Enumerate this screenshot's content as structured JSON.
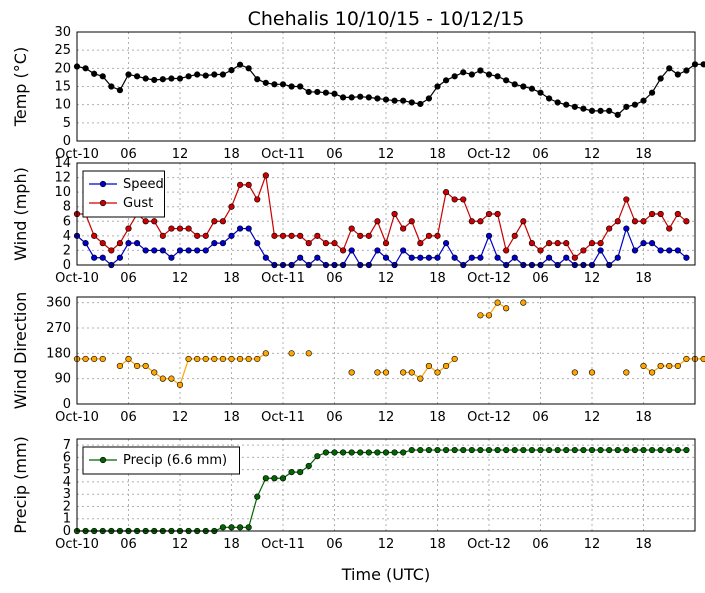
{
  "chart_data": {
    "type": "line",
    "title": "Chehalis 10/10/15 - 10/12/15",
    "xlabel": "Time (UTC)",
    "x_tick_labels": [
      "Oct-10",
      "06",
      "12",
      "18",
      "Oct-11",
      "06",
      "12",
      "18",
      "Oct-12",
      "06",
      "12",
      "18"
    ],
    "x_tick_hours": [
      0,
      6,
      12,
      18,
      24,
      30,
      36,
      42,
      48,
      54,
      60,
      66
    ],
    "x_range_hours": [
      0,
      72
    ],
    "grid": true,
    "panels": [
      {
        "ylabel": "Temp (°C)",
        "ylim": [
          0,
          30
        ],
        "yticks": [
          0,
          5,
          10,
          15,
          20,
          25,
          30
        ],
        "series": [
          {
            "color": "#000000",
            "values": [
              20.5,
              20,
              18.5,
              17.8,
              15,
              14,
              18.3,
              17.8,
              17.2,
              16.8,
              17,
              17.2,
              17.2,
              17.8,
              18.3,
              18,
              18.3,
              18.3,
              19.5,
              21,
              20,
              17,
              16,
              15.6,
              15.6,
              15,
              15,
              13.5,
              13.5,
              13.3,
              13,
              12,
              12,
              12.2,
              12,
              11.7,
              11.4,
              11.1,
              11.1,
              10.6,
              10.2,
              11.7,
              15,
              16.7,
              17.8,
              18.9,
              18.3,
              19.4,
              18.3,
              17.8,
              16.7,
              15.6,
              15,
              14.4,
              13.3,
              11.7,
              10.6,
              10,
              9.4,
              8.9,
              8.3,
              8.3,
              8.3,
              7.2,
              9.4,
              10,
              11.1,
              13.3,
              17.2,
              20,
              18.3,
              19.4,
              21.1,
              21.1
            ]
          }
        ]
      },
      {
        "ylabel": "Wind (mph)",
        "ylim": [
          0,
          14
        ],
        "yticks": [
          0,
          2,
          4,
          6,
          8,
          10,
          12,
          14
        ],
        "legend": {
          "placement": "upper-left"
        },
        "series": [
          {
            "name": "Speed",
            "color": "#0000cc",
            "values": [
              4,
              3,
              1,
              1,
              0,
              1,
              3,
              3,
              2,
              2,
              2,
              1,
              2,
              2,
              2,
              2,
              3,
              3,
              4,
              5,
              5,
              3,
              1,
              0,
              0,
              0,
              1,
              0,
              1,
              0,
              0,
              0,
              2,
              0,
              0,
              2,
              1,
              0,
              2,
              1,
              1,
              1,
              1,
              3,
              1,
              0,
              1,
              1,
              4,
              1,
              0,
              1,
              0,
              0,
              0,
              1,
              0,
              1,
              0,
              0,
              0,
              2,
              0,
              1,
              5,
              2,
              3,
              3,
              2,
              2,
              2,
              1
            ]
          },
          {
            "name": "Gust",
            "color": "#cc0000",
            "values": [
              7,
              7,
              4,
              3,
              2,
              3,
              5,
              7,
              6,
              6,
              4,
              5,
              5,
              5,
              4,
              4,
              6,
              6,
              8,
              11,
              11,
              9,
              12.3,
              4,
              4,
              4,
              4,
              3,
              4,
              3,
              3,
              2,
              5,
              4,
              4,
              6,
              3,
              7,
              5,
              6,
              3,
              4,
              4,
              10,
              9,
              9,
              6,
              6,
              7,
              7,
              2,
              4,
              6,
              3,
              2,
              3,
              3,
              3,
              1,
              2,
              3,
              3,
              5,
              6,
              9,
              6,
              6,
              7,
              7,
              5,
              7,
              6
            ]
          }
        ]
      },
      {
        "ylabel": "Wind Direction",
        "ylim": [
          0,
          380
        ],
        "yticks": [
          0,
          90,
          180,
          270,
          360
        ],
        "series": [
          {
            "color": "#ffa500",
            "values": [
              160,
              160,
              160,
              160,
              null,
              135,
              160,
              135,
              135,
              112,
              90,
              90,
              68,
              160,
              160,
              160,
              160,
              160,
              160,
              160,
              160,
              160,
              180,
              null,
              null,
              180,
              null,
              180,
              null,
              null,
              null,
              null,
              112,
              null,
              null,
              112,
              112,
              null,
              112,
              112,
              90,
              135,
              112,
              135,
              160,
              null,
              null,
              315,
              315,
              360,
              340,
              null,
              360,
              null,
              null,
              null,
              null,
              null,
              112,
              null,
              112,
              null,
              null,
              null,
              112,
              null,
              135,
              112,
              135,
              135,
              135,
              160,
              160,
              160,
              160,
              160
            ]
          }
        ]
      },
      {
        "ylabel": "Precip (mm)",
        "ylim": [
          0,
          7.5
        ],
        "yticks": [
          0,
          1,
          2,
          3,
          4,
          5,
          6,
          7
        ],
        "legend": {
          "placement": "upper-left"
        },
        "series": [
          {
            "name": "Precip (6.6 mm)",
            "color": "#006400",
            "values": [
              0,
              0,
              0,
              0,
              0,
              0,
              0,
              0,
              0,
              0,
              0,
              0,
              0,
              0,
              0,
              0,
              0,
              0.3,
              0.3,
              0.3,
              0.3,
              2.8,
              4.3,
              4.3,
              4.3,
              4.8,
              4.8,
              5.3,
              6.1,
              6.4,
              6.4,
              6.4,
              6.4,
              6.4,
              6.4,
              6.4,
              6.4,
              6.4,
              6.4,
              6.6,
              6.6,
              6.6,
              6.6,
              6.6,
              6.6,
              6.6,
              6.6,
              6.6,
              6.6,
              6.6,
              6.6,
              6.6,
              6.6,
              6.6,
              6.6,
              6.6,
              6.6,
              6.6,
              6.6,
              6.6,
              6.6,
              6.6,
              6.6,
              6.6,
              6.6,
              6.6,
              6.6,
              6.6,
              6.6,
              6.6,
              6.6,
              6.6
            ]
          }
        ]
      }
    ]
  }
}
